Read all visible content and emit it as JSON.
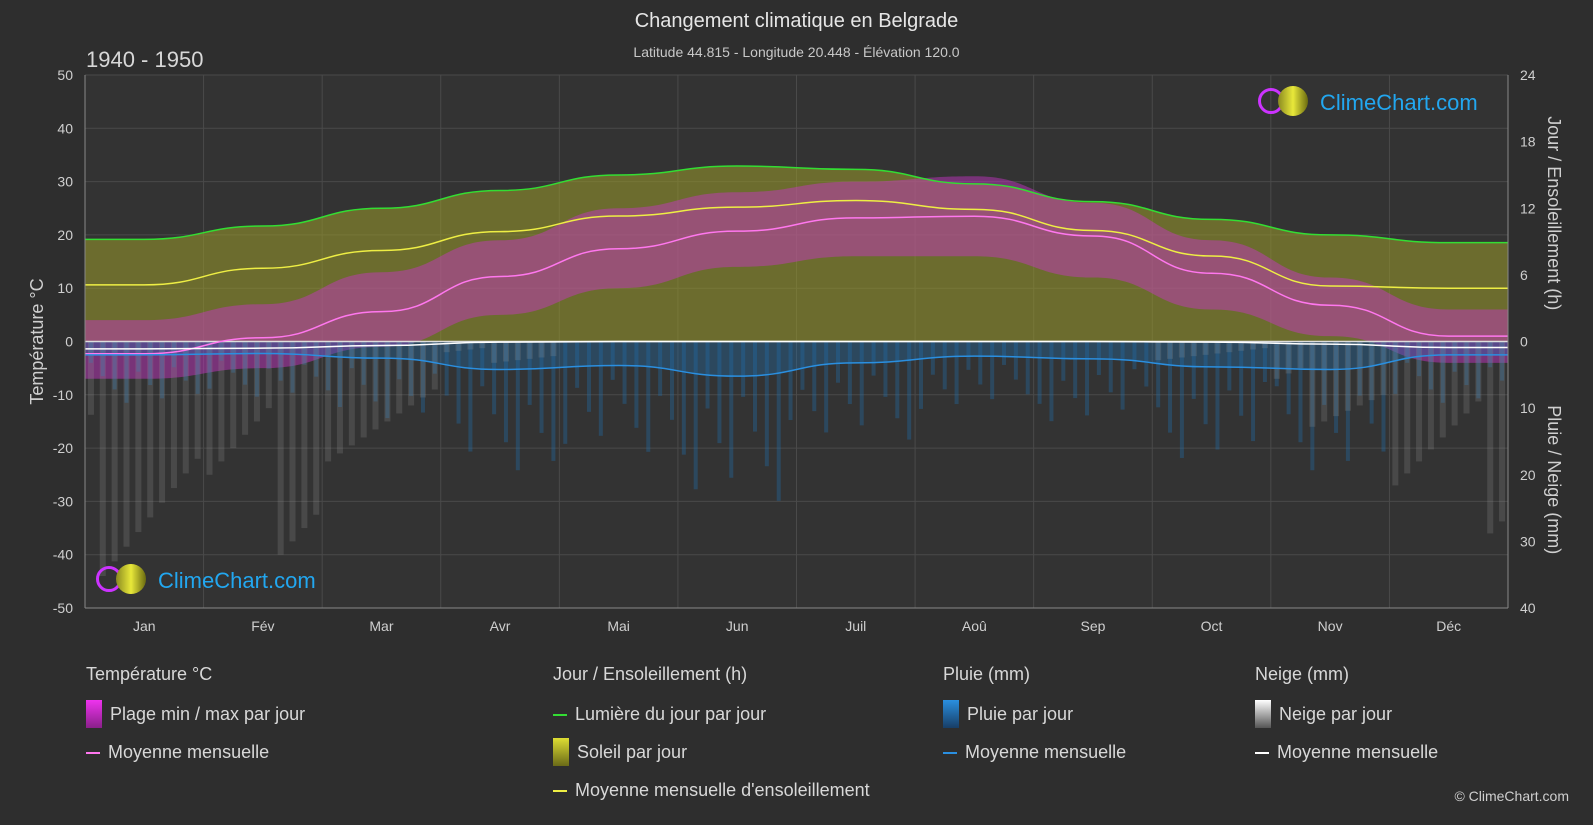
{
  "title": "Changement climatique en Belgrade",
  "subtitle": "Latitude 44.815 - Longitude 20.448 - Élévation 120.0",
  "period": "1940 - 1950",
  "logo_text": "ClimeChart.com",
  "copyright": "© ClimeChart.com",
  "colors": {
    "background": "#2e2e2e",
    "daylight": "#33dd33",
    "sunshine_mean": "#eeee44",
    "temp_mean": "#ff77ee",
    "rain_mean": "#2a8fe0",
    "snow_mean": "#ffffff",
    "temp_range": "#cc33cc",
    "sunshine_fill": "#9a9a2a",
    "rain_fill": "#1f6fb0",
    "snow_fill": "#9a9a9a"
  },
  "legend": {
    "temp": {
      "header": "Température °C",
      "range": "Plage min / max par jour",
      "mean": "Moyenne mensuelle"
    },
    "sun": {
      "header": "Jour / Ensoleillement (h)",
      "daylight": "Lumière du jour par jour",
      "sunshine": "Soleil par jour",
      "mean": "Moyenne mensuelle d'ensoleillement"
    },
    "rain": {
      "header": "Pluie (mm)",
      "daily": "Pluie par jour",
      "mean": "Moyenne mensuelle"
    },
    "snow": {
      "header": "Neige (mm)",
      "daily": "Neige par jour",
      "mean": "Moyenne mensuelle"
    }
  },
  "chart_data": {
    "type": "line",
    "categories": [
      "Jan",
      "Fév",
      "Mar",
      "Avr",
      "Mai",
      "Jun",
      "Juil",
      "Aoû",
      "Sep",
      "Oct",
      "Nov",
      "Déc"
    ],
    "ylabel_left": "Température °C",
    "ylabel_right_top": "Jour / Ensoleillement (h)",
    "ylabel_right_bottom": "Pluie / Neige (mm)",
    "ylim_left": [
      -50,
      50
    ],
    "yticks_left": [
      50,
      40,
      30,
      20,
      10,
      0,
      -10,
      -20,
      -30,
      -40,
      -50
    ],
    "yticks_right_sun": [
      24,
      18,
      12,
      6,
      0
    ],
    "yticks_right_precip": [
      10,
      20,
      30,
      40
    ],
    "grid": true,
    "series": [
      {
        "name": "Lumière du jour par jour",
        "axis": "hours",
        "values": [
          9.2,
          10.4,
          12.0,
          13.6,
          15.0,
          15.8,
          15.5,
          14.2,
          12.6,
          11.0,
          9.6,
          8.9
        ]
      },
      {
        "name": "Moyenne mensuelle d'ensoleillement",
        "axis": "hours",
        "values": [
          5.1,
          6.6,
          8.2,
          9.9,
          11.3,
          12.1,
          12.7,
          11.9,
          10.0,
          7.7,
          5.0,
          4.8
        ]
      },
      {
        "name": "Moyenne mensuelle",
        "group": "temp",
        "axis": "temp",
        "values": [
          -2.3,
          0.7,
          5.6,
          12.2,
          17.4,
          20.7,
          23.2,
          23.5,
          19.8,
          12.8,
          6.8,
          1.0
        ]
      },
      {
        "name": "Moyenne mensuelle",
        "group": "rain",
        "axis": "precip_mm",
        "values": [
          2.0,
          1.8,
          2.5,
          4.2,
          3.6,
          5.2,
          3.2,
          2.2,
          2.6,
          3.8,
          4.2,
          2.0
        ]
      },
      {
        "name": "Moyenne mensuelle",
        "group": "snow",
        "axis": "precip_mm",
        "values": [
          1.1,
          1.0,
          0.6,
          0.1,
          0,
          0,
          0,
          0,
          0,
          0.1,
          0.4,
          0.9
        ]
      }
    ],
    "temp_range_max": [
      4,
      7,
      13,
      19,
      25,
      28,
      30,
      31,
      26,
      19,
      12,
      6
    ],
    "temp_range_min": [
      -7,
      -5,
      -1,
      5,
      10,
      14,
      16,
      16,
      12,
      6,
      1,
      -4
    ]
  }
}
